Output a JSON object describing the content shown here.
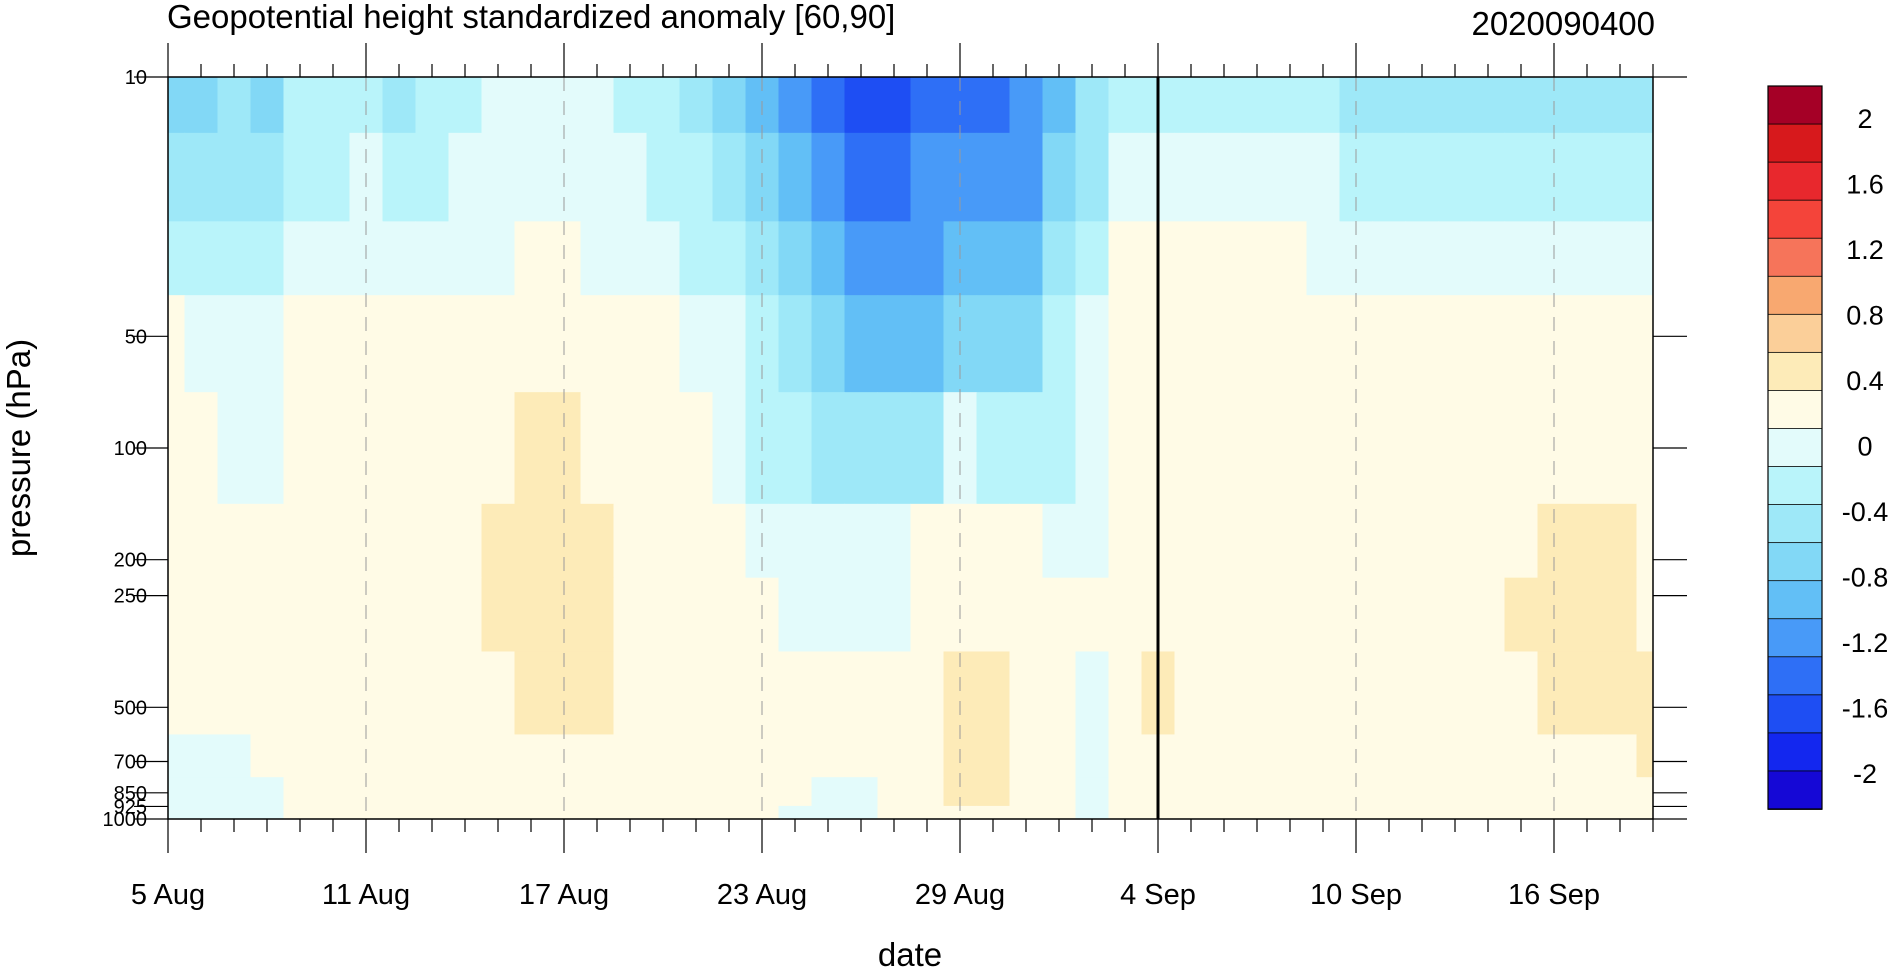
{
  "chart_data": {
    "type": "heatmap",
    "title": "Geopotential height standardized anomaly [60,90]",
    "date_label": "2020090400",
    "xlabel": "date",
    "ylabel": "pressure (hPa)",
    "x_ticks": [
      "5 Aug",
      "11 Aug",
      "17 Aug",
      "23 Aug",
      "29 Aug",
      "4 Sep",
      "10 Sep",
      "16 Sep"
    ],
    "x_tick_days": [
      0,
      6,
      12,
      18,
      24,
      30,
      36,
      42
    ],
    "x_range_days": [
      0,
      45
    ],
    "current_day": 30,
    "y_ticks": [
      10,
      50,
      100,
      200,
      250,
      500,
      700,
      850,
      925,
      1000
    ],
    "y_tick_labels": [
      "10",
      "50",
      "100",
      "200",
      "250",
      "500",
      "700",
      "850",
      "925",
      "1000"
    ],
    "y_range": [
      10,
      1000
    ],
    "y_scale": "log",
    "y_reversed": true,
    "colorbar_labels": [
      "2",
      "1.6",
      "1.2",
      "0.8",
      "0.4",
      "0",
      "-0.4",
      "-0.8",
      "-1.2",
      "-1.6",
      "-2"
    ],
    "colorbar_colors": [
      "#a50026",
      "#d7191c",
      "#e8282d",
      "#f4443a",
      "#f6745a",
      "#f8a870",
      "#fbcf99",
      "#fdebb8",
      "#fffbe6",
      "#e3fbfb",
      "#b9f4fa",
      "#9ee8f8",
      "#82d8f6",
      "#62bff6",
      "#489af8",
      "#2e6ff6",
      "#1e4ef3",
      "#1327ef",
      "#1508d6"
    ],
    "colorbar_level_values": [
      2.0,
      1.8,
      1.6,
      1.4,
      1.2,
      1.0,
      0.8,
      0.4,
      0.0,
      -0.2,
      -0.4,
      -0.6,
      -0.8,
      -1.0,
      -1.2,
      -1.4,
      -1.6,
      -1.8,
      -2.0
    ],
    "series": [
      {
        "pressure": 10,
        "values": [
          -0.8,
          -0.8,
          -0.6,
          -0.8,
          -0.4,
          -0.4,
          -0.4,
          -0.6,
          -0.4,
          -0.4,
          -0.2,
          -0.2,
          -0.2,
          -0.2,
          -0.4,
          -0.4,
          -0.6,
          -0.8,
          -1.0,
          -1.2,
          -1.4,
          -1.6,
          -1.5,
          -1.4,
          -1.3,
          -1.4,
          -1.2,
          -1.0,
          -0.6,
          -0.4,
          -0.4,
          -0.4,
          -0.4,
          -0.4,
          -0.4,
          -0.4,
          -0.6,
          -0.6,
          -0.6,
          -0.6,
          -0.6,
          -0.6,
          -0.6,
          -0.6,
          -0.6,
          -0.6
        ]
      },
      {
        "pressure": 20,
        "values": [
          -0.6,
          -0.6,
          -0.6,
          -0.6,
          -0.4,
          -0.4,
          -0.2,
          -0.4,
          -0.4,
          -0.2,
          -0.2,
          -0.2,
          -0.2,
          -0.2,
          -0.2,
          -0.4,
          -0.4,
          -0.6,
          -0.8,
          -1.0,
          -1.2,
          -1.4,
          -1.3,
          -1.2,
          -1.2,
          -1.2,
          -1.1,
          -0.8,
          -0.5,
          -0.2,
          -0.2,
          -0.2,
          -0.2,
          -0.2,
          -0.2,
          -0.2,
          -0.4,
          -0.4,
          -0.4,
          -0.4,
          -0.4,
          -0.4,
          -0.4,
          -0.4,
          -0.4,
          -0.4
        ]
      },
      {
        "pressure": 30,
        "values": [
          -0.4,
          -0.4,
          -0.4,
          -0.4,
          -0.2,
          -0.2,
          -0.2,
          -0.2,
          -0.2,
          -0.2,
          -0.2,
          0.0,
          0.0,
          -0.2,
          -0.2,
          -0.2,
          -0.4,
          -0.4,
          -0.6,
          -0.8,
          -1.0,
          -1.2,
          -1.2,
          -1.1,
          -1.0,
          -1.0,
          -0.9,
          -0.6,
          -0.4,
          0.0,
          0.0,
          0.0,
          0.1,
          0.1,
          0.0,
          -0.2,
          -0.2,
          -0.2,
          -0.2,
          -0.2,
          -0.2,
          -0.2,
          -0.2,
          -0.2,
          -0.2,
          -0.2
        ]
      },
      {
        "pressure": 50,
        "values": [
          0.0,
          -0.2,
          -0.2,
          -0.2,
          0.0,
          0.0,
          0.0,
          0.0,
          0.0,
          0.2,
          0.2,
          0.2,
          0.2,
          0.1,
          0.0,
          0.0,
          -0.2,
          -0.2,
          -0.4,
          -0.6,
          -0.8,
          -1.0,
          -1.0,
          -0.9,
          -0.8,
          -0.8,
          -0.7,
          -0.4,
          -0.2,
          0.0,
          0.2,
          0.2,
          0.3,
          0.3,
          0.2,
          0.0,
          0.0,
          0.0,
          0.0,
          0.0,
          0.0,
          0.0,
          0.0,
          0.0,
          0.0,
          0.0
        ]
      },
      {
        "pressure": 100,
        "values": [
          0.0,
          0.0,
          -0.2,
          -0.2,
          0.0,
          0.0,
          0.0,
          0.0,
          0.2,
          0.3,
          0.3,
          0.4,
          0.4,
          0.3,
          0.2,
          0.1,
          0.0,
          -0.2,
          -0.3,
          -0.4,
          -0.5,
          -0.6,
          -0.6,
          -0.5,
          -0.2,
          -0.4,
          -0.4,
          -0.3,
          -0.2,
          0.0,
          0.2,
          0.2,
          0.3,
          0.2,
          0.2,
          0.0,
          0.0,
          0.2,
          0.2,
          0.2,
          0.2,
          0.2,
          0.2,
          0.2,
          0.2,
          0.2
        ]
      },
      {
        "pressure": 200,
        "values": [
          0.2,
          0.0,
          0.0,
          0.0,
          0.0,
          0.0,
          0.2,
          0.2,
          0.2,
          0.3,
          0.4,
          0.4,
          0.4,
          0.4,
          0.3,
          0.2,
          0.1,
          0.0,
          -0.1,
          -0.2,
          -0.2,
          -0.2,
          -0.2,
          0.0,
          0.1,
          0.1,
          0.0,
          -0.2,
          -0.1,
          0.0,
          0.2,
          0.2,
          0.2,
          0.2,
          0.2,
          0.0,
          0.0,
          0.2,
          0.2,
          0.2,
          0.2,
          0.3,
          0.4,
          0.4,
          0.4,
          0.3
        ]
      },
      {
        "pressure": 250,
        "values": [
          0.2,
          0.0,
          0.0,
          0.0,
          0.0,
          0.0,
          0.2,
          0.2,
          0.2,
          0.3,
          0.4,
          0.4,
          0.4,
          0.4,
          0.3,
          0.2,
          0.1,
          0.0,
          0.0,
          -0.1,
          -0.1,
          -0.2,
          -0.1,
          0.0,
          0.2,
          0.2,
          0.1,
          0.0,
          0.0,
          0.0,
          0.2,
          0.2,
          0.2,
          0.2,
          0.2,
          0.0,
          0.0,
          0.2,
          0.2,
          0.2,
          0.3,
          0.4,
          0.4,
          0.4,
          0.4,
          0.3
        ]
      },
      {
        "pressure": 500,
        "values": [
          0.0,
          0.0,
          0.0,
          0.0,
          0.0,
          0.0,
          0.2,
          0.2,
          0.2,
          0.2,
          0.3,
          0.4,
          0.4,
          0.4,
          0.3,
          0.2,
          0.1,
          0.0,
          0.0,
          0.0,
          0.0,
          0.0,
          0.0,
          0.2,
          0.4,
          0.4,
          0.2,
          0.0,
          -0.1,
          0.2,
          0.4,
          0.2,
          0.2,
          0.2,
          0.2,
          0.0,
          0.0,
          0.2,
          0.2,
          0.2,
          0.3,
          0.3,
          0.4,
          0.4,
          0.4,
          0.4
        ]
      },
      {
        "pressure": 700,
        "values": [
          -0.1,
          -0.1,
          -0.1,
          0.0,
          0.0,
          0.0,
          0.0,
          0.2,
          0.2,
          0.2,
          0.2,
          0.2,
          0.2,
          0.2,
          0.2,
          0.1,
          0.0,
          0.0,
          0.0,
          0.0,
          0.0,
          0.0,
          0.0,
          0.2,
          0.6,
          0.4,
          0.2,
          0.0,
          -0.2,
          0.2,
          0.2,
          0.2,
          0.2,
          0.2,
          0.2,
          0.0,
          0.0,
          0.2,
          0.2,
          0.2,
          0.2,
          0.2,
          0.2,
          0.2,
          0.2,
          0.4
        ]
      },
      {
        "pressure": 850,
        "values": [
          -0.2,
          -0.2,
          -0.2,
          -0.1,
          0.0,
          0.0,
          0.0,
          0.0,
          0.2,
          0.2,
          0.2,
          0.2,
          0.2,
          0.1,
          0.0,
          0.0,
          0.0,
          0.0,
          0.0,
          0.0,
          -0.1,
          -0.1,
          0.0,
          0.2,
          0.4,
          0.4,
          0.2,
          0.0,
          -0.2,
          0.2,
          0.2,
          0.2,
          0.2,
          0.2,
          0.2,
          0.0,
          0.0,
          0.2,
          0.2,
          0.2,
          0.2,
          0.2,
          0.2,
          0.2,
          0.2,
          0.2
        ]
      },
      {
        "pressure": 1000,
        "values": [
          -0.2,
          -0.2,
          -0.2,
          -0.1,
          0.0,
          0.0,
          0.0,
          0.0,
          0.0,
          0.2,
          0.2,
          0.2,
          0.1,
          0.0,
          0.0,
          0.0,
          0.0,
          0.0,
          0.0,
          -0.1,
          -0.1,
          -0.1,
          0.0,
          0.2,
          0.2,
          0.2,
          0.1,
          0.0,
          -0.1,
          0.2,
          0.2,
          0.2,
          0.2,
          0.2,
          0.2,
          0.0,
          0.0,
          0.2,
          0.2,
          0.2,
          0.2,
          0.2,
          0.2,
          0.2,
          0.2,
          0.2
        ]
      }
    ]
  }
}
